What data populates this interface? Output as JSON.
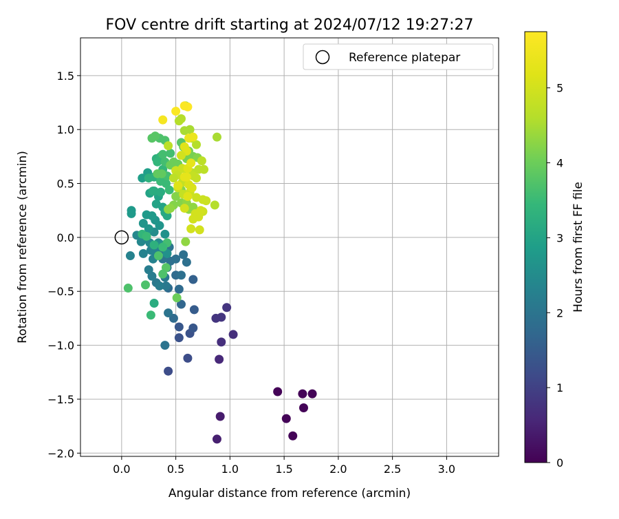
{
  "chart_data": {
    "type": "scatter",
    "title": "FOV centre drift starting at 2024/07/12 19:27:27",
    "xlabel": "Angular distance from reference (arcmin)",
    "ylabel": "Rotation from reference (arcmin)",
    "xlim": [
      -0.38,
      3.48
    ],
    "ylim": [
      -2.03,
      1.85
    ],
    "xticks": [
      "0.0",
      "0.5",
      "1.0",
      "1.5",
      "2.0",
      "2.5",
      "3.0"
    ],
    "xtick_values": [
      0,
      0.5,
      1,
      1.5,
      2,
      2.5,
      3
    ],
    "yticks": [
      "−2.0",
      "−1.5",
      "−1.0",
      "−0.5",
      "0.0",
      "0.5",
      "1.0",
      "1.5"
    ],
    "ytick_values": [
      -2,
      -1.5,
      -1,
      -0.5,
      0,
      0.5,
      1,
      1.5
    ],
    "grid": true,
    "legend": {
      "placement": "top-right",
      "entries": [
        "Reference platepar"
      ]
    },
    "reference_point": {
      "x": 0,
      "y": 0
    },
    "colorbar": {
      "label": "Hours from first FF file",
      "colormap": "viridis",
      "range": [
        0,
        5.75
      ],
      "ticks": [
        "0",
        "1",
        "2",
        "3",
        "4",
        "5"
      ],
      "tick_values": [
        0,
        1,
        2,
        3,
        4,
        5
      ]
    },
    "points": [
      [
        1.44,
        -1.43,
        0.05
      ],
      [
        1.67,
        -1.45,
        0.05
      ],
      [
        1.76,
        -1.45,
        0.05
      ],
      [
        1.68,
        -1.58,
        0.05
      ],
      [
        1.52,
        -1.68,
        0.05
      ],
      [
        1.58,
        -1.84,
        0.05
      ],
      [
        0.91,
        -1.66,
        0.4
      ],
      [
        0.88,
        -1.87,
        0.45
      ],
      [
        0.9,
        -1.13,
        0.6
      ],
      [
        0.92,
        -0.97,
        0.7
      ],
      [
        1.03,
        -0.9,
        0.7
      ],
      [
        0.97,
        -0.65,
        0.8
      ],
      [
        0.92,
        -0.74,
        0.8
      ],
      [
        0.87,
        -0.75,
        0.8
      ],
      [
        0.43,
        -1.24,
        1.2
      ],
      [
        0.61,
        -1.12,
        1.2
      ],
      [
        0.53,
        -0.93,
        1.3
      ],
      [
        0.63,
        -0.89,
        1.3
      ],
      [
        0.66,
        -0.84,
        1.4
      ],
      [
        0.53,
        -0.83,
        1.4
      ],
      [
        0.67,
        -0.67,
        1.5
      ],
      [
        0.66,
        -0.39,
        1.6
      ],
      [
        0.55,
        -0.62,
        1.7
      ],
      [
        0.48,
        -0.75,
        1.8
      ],
      [
        0.53,
        -0.48,
        1.8
      ],
      [
        0.43,
        -0.47,
        1.8
      ],
      [
        0.5,
        -0.35,
        1.8
      ],
      [
        0.55,
        -0.35,
        1.9
      ],
      [
        0.6,
        -0.23,
        1.9
      ],
      [
        0.57,
        -0.16,
        1.9
      ],
      [
        0.5,
        -0.2,
        1.9
      ],
      [
        0.45,
        -0.22,
        1.9
      ],
      [
        0.42,
        -0.28,
        2.0
      ],
      [
        0.38,
        -0.2,
        2.0
      ],
      [
        0.44,
        -0.09,
        2.0
      ],
      [
        0.36,
        -0.12,
        2.0
      ],
      [
        0.43,
        -0.7,
        2.0
      ],
      [
        0.4,
        -1.0,
        2.0
      ],
      [
        0.41,
        -0.45,
        2.1
      ],
      [
        0.4,
        -0.37,
        2.1
      ],
      [
        0.32,
        -0.42,
        2.1
      ],
      [
        0.35,
        -0.45,
        2.2
      ],
      [
        0.28,
        -0.36,
        2.2
      ],
      [
        0.25,
        -0.3,
        2.2
      ],
      [
        0.29,
        -0.2,
        2.3
      ],
      [
        0.27,
        -0.12,
        2.3
      ],
      [
        0.31,
        -0.13,
        2.3
      ],
      [
        0.2,
        -0.15,
        2.3
      ],
      [
        0.08,
        -0.17,
        2.3
      ],
      [
        0.18,
        -0.04,
        2.4
      ],
      [
        0.22,
        0.0,
        2.4
      ],
      [
        0.26,
        -0.05,
        2.4
      ],
      [
        0.14,
        0.02,
        2.4
      ],
      [
        0.3,
        0.05,
        2.5
      ],
      [
        0.34,
        -0.05,
        2.5
      ],
      [
        0.38,
        -0.07,
        2.6
      ],
      [
        0.4,
        0.03,
        2.6
      ],
      [
        0.42,
        -0.15,
        2.6
      ],
      [
        0.35,
        0.11,
        2.7
      ],
      [
        0.31,
        0.16,
        2.7
      ],
      [
        0.25,
        0.08,
        2.7
      ],
      [
        0.2,
        0.13,
        2.7
      ],
      [
        0.23,
        0.21,
        2.8
      ],
      [
        0.28,
        0.2,
        2.8
      ],
      [
        0.09,
        0.25,
        2.8
      ],
      [
        0.09,
        0.22,
        2.8
      ],
      [
        0.19,
        0.55,
        2.9
      ],
      [
        0.24,
        0.6,
        2.9
      ],
      [
        0.26,
        0.41,
        3.0
      ],
      [
        0.32,
        0.31,
        3.0
      ],
      [
        0.34,
        0.38,
        3.0
      ],
      [
        0.38,
        0.28,
        3.0
      ],
      [
        0.4,
        0.23,
        3.1
      ],
      [
        0.42,
        0.2,
        3.1
      ],
      [
        0.29,
        0.43,
        3.2
      ],
      [
        0.3,
        0.43,
        3.2
      ],
      [
        0.36,
        0.42,
        3.2
      ],
      [
        0.3,
        0.56,
        3.3
      ],
      [
        0.25,
        0.55,
        3.3
      ],
      [
        0.32,
        0.73,
        3.3
      ],
      [
        0.36,
        0.75,
        3.4
      ],
      [
        0.33,
        0.7,
        3.4
      ],
      [
        0.38,
        0.63,
        3.4
      ],
      [
        0.36,
        0.52,
        3.5
      ],
      [
        0.41,
        0.5,
        3.5
      ],
      [
        0.44,
        0.44,
        3.5
      ],
      [
        0.42,
        0.57,
        3.6
      ],
      [
        0.4,
        0.7,
        3.6
      ],
      [
        0.45,
        0.78,
        3.6
      ],
      [
        0.38,
        0.77,
        3.6
      ],
      [
        0.4,
        0.9,
        3.7
      ],
      [
        0.35,
        0.92,
        3.7
      ],
      [
        0.28,
        0.92,
        3.8
      ],
      [
        0.31,
        0.94,
        3.8
      ],
      [
        0.55,
        0.88,
        3.8
      ],
      [
        0.57,
        0.84,
        3.9
      ],
      [
        0.33,
        0.59,
        3.9
      ],
      [
        0.37,
        0.59,
        3.9
      ],
      [
        0.45,
        0.67,
        4.0
      ],
      [
        0.48,
        0.7,
        4.0
      ],
      [
        0.52,
        0.68,
        4.0
      ],
      [
        0.55,
        0.64,
        4.0
      ],
      [
        0.6,
        0.73,
        4.1
      ],
      [
        0.66,
        0.75,
        4.1
      ],
      [
        0.62,
        0.8,
        4.1
      ],
      [
        0.58,
        0.77,
        4.1
      ],
      [
        0.7,
        0.74,
        4.2
      ],
      [
        0.48,
        0.3,
        4.2
      ],
      [
        0.5,
        0.38,
        4.2
      ],
      [
        0.55,
        0.44,
        4.2
      ],
      [
        0.55,
        0.32,
        4.2
      ],
      [
        0.6,
        0.32,
        4.3
      ],
      [
        0.62,
        0.26,
        4.3
      ],
      [
        0.66,
        0.28,
        4.3
      ],
      [
        0.45,
        0.27,
        4.3
      ],
      [
        0.43,
        0.26,
        4.3
      ],
      [
        0.51,
        -0.56,
        4.0
      ],
      [
        0.41,
        -0.28,
        3.8
      ],
      [
        0.38,
        -0.34,
        3.7
      ],
      [
        0.34,
        -0.17,
        3.7
      ],
      [
        0.42,
        -0.05,
        3.6
      ],
      [
        0.38,
        -0.09,
        3.5
      ],
      [
        0.3,
        -0.07,
        3.3
      ],
      [
        0.27,
        -0.72,
        3.5
      ],
      [
        0.3,
        -0.61,
        3.2
      ],
      [
        0.22,
        -0.44,
        3.7
      ],
      [
        0.06,
        -0.47,
        3.7
      ],
      [
        0.19,
        0.03,
        3.4
      ],
      [
        0.23,
        0.01,
        3.5
      ],
      [
        0.59,
        -0.04,
        4.3
      ],
      [
        0.59,
        1.22,
        4.2
      ],
      [
        0.63,
        1.0,
        4.5
      ],
      [
        0.58,
        0.99,
        4.5
      ],
      [
        0.53,
        1.08,
        4.6
      ],
      [
        0.55,
        1.1,
        4.6
      ],
      [
        0.88,
        0.93,
        4.5
      ],
      [
        0.65,
        0.92,
        4.6
      ],
      [
        0.69,
        0.86,
        4.6
      ],
      [
        0.74,
        0.71,
        4.7
      ],
      [
        0.76,
        0.63,
        4.7
      ],
      [
        0.71,
        0.63,
        4.7
      ],
      [
        0.65,
        0.6,
        4.7
      ],
      [
        0.6,
        0.57,
        4.7
      ],
      [
        0.66,
        0.57,
        4.8
      ],
      [
        0.69,
        0.55,
        4.8
      ],
      [
        0.56,
        0.51,
        4.8
      ],
      [
        0.52,
        0.46,
        4.8
      ],
      [
        0.57,
        0.4,
        4.8
      ],
      [
        0.63,
        0.42,
        4.9
      ],
      [
        0.69,
        0.37,
        4.9
      ],
      [
        0.75,
        0.35,
        4.9
      ],
      [
        0.78,
        0.34,
        4.9
      ],
      [
        0.75,
        0.24,
        4.9
      ],
      [
        0.68,
        0.22,
        5.0
      ],
      [
        0.73,
        0.25,
        5.0
      ],
      [
        0.71,
        0.19,
        5.0
      ],
      [
        0.66,
        0.17,
        5.0
      ],
      [
        0.64,
        0.08,
        5.0
      ],
      [
        0.72,
        0.07,
        5.0
      ],
      [
        0.86,
        0.3,
        4.6
      ],
      [
        0.58,
        0.27,
        5.0
      ],
      [
        0.5,
        0.62,
        4.9
      ],
      [
        0.52,
        0.58,
        4.8
      ],
      [
        0.48,
        0.55,
        4.7
      ],
      [
        0.56,
        0.64,
        4.9
      ],
      [
        0.62,
        0.49,
        5.1
      ],
      [
        0.61,
        0.64,
        5.2
      ],
      [
        0.64,
        0.69,
        5.3
      ],
      [
        0.58,
        0.56,
        5.3
      ],
      [
        0.52,
        0.48,
        5.2
      ],
      [
        0.58,
        0.84,
        5.2
      ],
      [
        0.6,
        0.8,
        5.2
      ],
      [
        0.62,
        0.92,
        5.4
      ],
      [
        0.66,
        0.93,
        5.4
      ],
      [
        0.6,
        0.56,
        5.3
      ],
      [
        0.55,
        0.76,
        5.0
      ],
      [
        0.43,
        0.85,
        4.7
      ],
      [
        0.61,
        0.38,
        5.2
      ],
      [
        0.65,
        0.46,
        5.1
      ],
      [
        0.38,
        1.09,
        5.6
      ],
      [
        0.5,
        1.17,
        5.7
      ],
      [
        0.61,
        1.21,
        5.75
      ],
      [
        0.58,
        1.22,
        5.7
      ]
    ]
  }
}
